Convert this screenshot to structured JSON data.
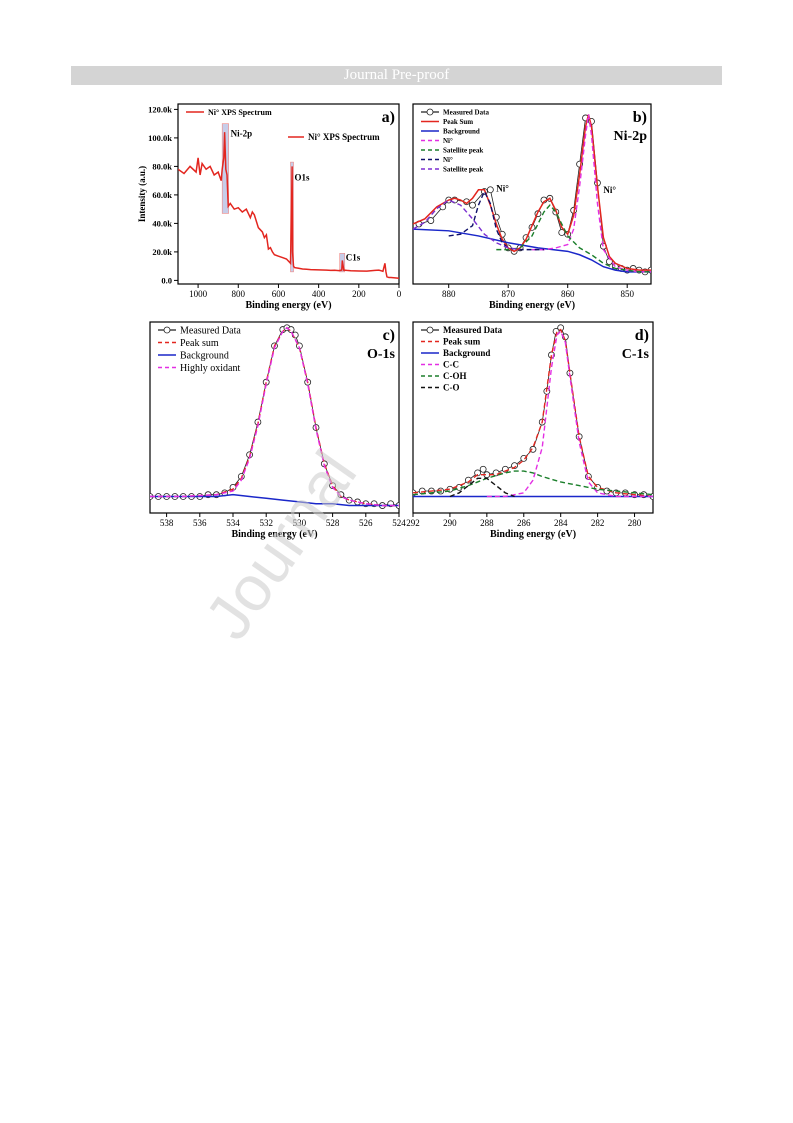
{
  "header": {
    "banner": "Journal Pre-proof"
  },
  "watermark": "Journal",
  "colors": {
    "red": "#e3261f",
    "blue": "#1a27c9",
    "green": "#1b7f2b",
    "magenta": "#e32fe3",
    "purple": "#7b2fd1",
    "navy": "#10106a",
    "black": "#111111",
    "highlight": "#9aa6d8"
  },
  "chart_data": [
    {
      "type": "line",
      "panel": "a)",
      "xlabel": "Binding energy (eV)",
      "ylabel": "Intensity (a.u.)",
      "xlim": [
        1100,
        0
      ],
      "ylim": [
        0,
        120000
      ],
      "x_ticks": [
        "1000",
        "800",
        "600",
        "400",
        "200",
        "0"
      ],
      "y_ticks": [
        "0.0",
        "20.0k",
        "40.0k",
        "60.0k",
        "80.0k",
        "100.0k",
        "120.0k"
      ],
      "legend": [
        "Ni° XPS Spectrum"
      ],
      "annotations": [
        "Ni-2p",
        "O1s",
        "C1s"
      ],
      "series": [
        {
          "name": "Ni° XPS Spectrum",
          "color": "#e3261f",
          "x": [
            1100,
            1070,
            1040,
            1010,
            1000,
            990,
            980,
            960,
            940,
            920,
            900,
            885,
            880,
            872,
            868,
            862,
            856,
            850,
            840,
            820,
            800,
            780,
            760,
            740,
            730,
            720,
            700,
            680,
            670,
            660,
            650,
            640,
            630,
            620,
            600,
            580,
            560,
            540,
            535,
            532,
            530,
            525,
            520,
            500,
            480,
            460,
            440,
            420,
            400,
            380,
            360,
            340,
            320,
            300,
            285,
            282,
            275,
            260,
            240,
            200,
            160,
            120,
            100,
            80,
            70,
            65,
            60,
            50,
            40,
            20,
            0
          ],
          "y": [
            78000,
            75000,
            80000,
            76000,
            86000,
            74000,
            82000,
            78000,
            80000,
            74000,
            76000,
            70000,
            78000,
            86000,
            104000,
            78000,
            74000,
            52000,
            54000,
            50000,
            51000,
            48000,
            50000,
            44000,
            48000,
            46000,
            37000,
            34000,
            30000,
            32000,
            22000,
            23000,
            20000,
            18000,
            17000,
            16000,
            15000,
            12000,
            50000,
            80000,
            20000,
            10000,
            9000,
            8500,
            8000,
            7800,
            7600,
            7500,
            7400,
            7300,
            7200,
            7000,
            7100,
            6900,
            7200,
            14000,
            7200,
            7000,
            6800,
            6600,
            6500,
            7000,
            7200,
            6400,
            12000,
            6000,
            2500,
            2000,
            2000,
            1800,
            1500
          ]
        }
      ]
    },
    {
      "type": "line",
      "panel": "b)",
      "title": "Ni-2p",
      "xlabel": "Binding energy (eV)",
      "xlim": [
        886,
        846
      ],
      "ylim": [
        0,
        1
      ],
      "x_ticks": [
        "880",
        "870",
        "860",
        "850"
      ],
      "legend": [
        "Measured Data",
        "Peak Sum",
        "Background",
        "Ni°",
        "Satellite peak",
        "Ni°",
        "Satellite peak"
      ],
      "annotations": [
        "Ni°",
        "Ni°"
      ],
      "series": [
        {
          "name": "Measured Data",
          "style": "circles",
          "x": [
            885,
            883,
            881,
            880,
            879,
            877,
            876,
            874,
            873,
            872,
            871,
            870,
            869,
            868,
            867,
            866,
            865,
            864,
            863,
            862,
            861,
            860,
            859,
            858,
            857,
            856,
            855,
            854,
            853,
            852,
            851,
            850,
            849,
            848,
            847,
            846
          ],
          "y": [
            0.33,
            0.35,
            0.43,
            0.47,
            0.47,
            0.46,
            0.44,
            0.52,
            0.53,
            0.37,
            0.27,
            0.19,
            0.17,
            0.19,
            0.25,
            0.31,
            0.39,
            0.47,
            0.48,
            0.4,
            0.28,
            0.27,
            0.41,
            0.68,
            0.95,
            0.93,
            0.57,
            0.2,
            0.11,
            0.08,
            0.07,
            0.06,
            0.07,
            0.06,
            0.05,
            0.06
          ]
        },
        {
          "name": "Peak Sum",
          "color": "#e3261f",
          "x": [
            886,
            884,
            882,
            880,
            879,
            878,
            877,
            876,
            875,
            874,
            873,
            872,
            871,
            870,
            869,
            868,
            867,
            866,
            865,
            864,
            863,
            862,
            861,
            860,
            859,
            858,
            857,
            856.5,
            856,
            855,
            854,
            853,
            852,
            850,
            848,
            846
          ],
          "y": [
            0.33,
            0.36,
            0.43,
            0.47,
            0.48,
            0.47,
            0.45,
            0.48,
            0.53,
            0.53,
            0.44,
            0.33,
            0.24,
            0.19,
            0.17,
            0.19,
            0.24,
            0.32,
            0.4,
            0.46,
            0.48,
            0.41,
            0.31,
            0.27,
            0.38,
            0.62,
            0.9,
            0.97,
            0.9,
            0.55,
            0.25,
            0.14,
            0.1,
            0.07,
            0.06,
            0.06
          ]
        },
        {
          "name": "Background",
          "color": "#1a27c9",
          "x": [
            886,
            880,
            875,
            870,
            865,
            860,
            858,
            856,
            854,
            852,
            850,
            848,
            846
          ],
          "y": [
            0.3,
            0.29,
            0.26,
            0.22,
            0.19,
            0.17,
            0.15,
            0.12,
            0.08,
            0.06,
            0.05,
            0.05,
            0.05
          ]
        },
        {
          "name": "Ni°",
          "color": "#e32fe3",
          "dashed": true,
          "x": [
            866,
            864,
            862,
            860,
            859,
            858,
            857,
            856.5,
            856,
            855,
            854,
            852,
            850,
            848,
            846
          ],
          "y": [
            0.18,
            0.18,
            0.19,
            0.21,
            0.3,
            0.55,
            0.85,
            0.97,
            0.85,
            0.45,
            0.18,
            0.08,
            0.06,
            0.05,
            0.05
          ]
        },
        {
          "name": "Satellite peak",
          "color": "#1b7f2b",
          "dashed": true,
          "x": [
            872,
            870,
            868,
            866,
            864,
            863,
            862,
            860,
            858,
            856,
            854,
            852,
            850,
            848,
            846
          ],
          "y": [
            0.18,
            0.18,
            0.19,
            0.26,
            0.4,
            0.44,
            0.4,
            0.26,
            0.19,
            0.15,
            0.1,
            0.07,
            0.06,
            0.05,
            0.05
          ]
        },
        {
          "name": "Ni°",
          "color": "#10106a",
          "dashed": true,
          "x": [
            880,
            878,
            876,
            875,
            874,
            873,
            872,
            871,
            870,
            868,
            866,
            864
          ],
          "y": [
            0.26,
            0.27,
            0.32,
            0.44,
            0.52,
            0.45,
            0.3,
            0.22,
            0.19,
            0.18,
            0.18,
            0.18
          ]
        },
        {
          "name": "Satellite peak",
          "color": "#7b2fd1",
          "dashed": true,
          "x": [
            886,
            884,
            882,
            880,
            878,
            876,
            874,
            872,
            870,
            868
          ],
          "y": [
            0.3,
            0.34,
            0.42,
            0.47,
            0.44,
            0.36,
            0.27,
            0.22,
            0.19,
            0.18
          ]
        }
      ]
    },
    {
      "type": "line",
      "panel": "c)",
      "title": "O-1s",
      "xlabel": "Binding energy (eV)",
      "xlim": [
        539,
        524
      ],
      "ylim": [
        0,
        1
      ],
      "x_ticks": [
        "538",
        "536",
        "534",
        "532",
        "530",
        "528",
        "526",
        "524"
      ],
      "legend": [
        "Measured Data",
        "Peak sum",
        "Background",
        "Highly oxidant"
      ],
      "series": [
        {
          "name": "Measured Data",
          "style": "circles",
          "x": [
            539,
            538.5,
            538,
            537.5,
            537,
            536.5,
            536,
            535.5,
            535,
            534.5,
            534,
            533.5,
            533,
            532.5,
            532,
            531.5,
            531,
            530.75,
            530.5,
            530.25,
            530,
            529.5,
            529,
            528.5,
            528,
            527.5,
            527,
            526.5,
            526,
            525.5,
            525,
            524.5,
            524
          ],
          "y": [
            0.07,
            0.07,
            0.07,
            0.07,
            0.07,
            0.07,
            0.07,
            0.08,
            0.08,
            0.09,
            0.12,
            0.18,
            0.3,
            0.48,
            0.7,
            0.9,
            0.99,
            1.0,
            0.99,
            0.96,
            0.9,
            0.7,
            0.45,
            0.25,
            0.13,
            0.08,
            0.05,
            0.04,
            0.03,
            0.03,
            0.02,
            0.03,
            0.02
          ]
        },
        {
          "name": "Peak sum",
          "color": "#e3261f",
          "dashed": true,
          "x": [
            539,
            537,
            535,
            534,
            533.5,
            533,
            532.5,
            532,
            531.5,
            531,
            530.75,
            530.5,
            530,
            529.5,
            529,
            528.5,
            528,
            527.5,
            527,
            526,
            525,
            524
          ],
          "y": [
            0.07,
            0.07,
            0.08,
            0.11,
            0.17,
            0.29,
            0.47,
            0.7,
            0.9,
            0.98,
            1.0,
            0.98,
            0.89,
            0.7,
            0.45,
            0.25,
            0.13,
            0.07,
            0.05,
            0.03,
            0.02,
            0.02
          ]
        },
        {
          "name": "Background",
          "color": "#1a27c9",
          "x": [
            539,
            537,
            535,
            534,
            533,
            532,
            531,
            530,
            529,
            528,
            527,
            526,
            525,
            524
          ],
          "y": [
            0.07,
            0.07,
            0.07,
            0.08,
            0.07,
            0.06,
            0.05,
            0.04,
            0.03,
            0.03,
            0.02,
            0.02,
            0.02,
            0.02
          ]
        },
        {
          "name": "Highly oxidant",
          "color": "#e32fe3",
          "dashed": true,
          "x": [
            539,
            537,
            535,
            534,
            533.5,
            533,
            532.5,
            532,
            531.5,
            531,
            530.75,
            530.5,
            530,
            529.5,
            529,
            528.5,
            528,
            527.5,
            527,
            526,
            525,
            524
          ],
          "y": [
            0.07,
            0.07,
            0.08,
            0.1,
            0.16,
            0.28,
            0.46,
            0.69,
            0.89,
            0.98,
            1.0,
            0.98,
            0.89,
            0.69,
            0.44,
            0.24,
            0.12,
            0.07,
            0.05,
            0.03,
            0.02,
            0.02
          ]
        }
      ]
    },
    {
      "type": "line",
      "panel": "d)",
      "title": "C-1s",
      "xlabel": "Binding energy (eV)",
      "xlim": [
        292,
        279
      ],
      "ylim": [
        0,
        1
      ],
      "x_ticks": [
        "292",
        "290",
        "288",
        "286",
        "284",
        "282",
        "280"
      ],
      "legend": [
        "Measured Data",
        "Peak sum",
        "Background",
        "C-C",
        "C-OH",
        "C-O"
      ],
      "series": [
        {
          "name": "Measured Data",
          "style": "circles",
          "x": [
            292,
            291.5,
            291,
            290.5,
            290,
            289.5,
            289,
            288.5,
            288.2,
            288,
            287.5,
            287,
            286.5,
            286,
            285.5,
            285,
            284.75,
            284.5,
            284.25,
            284,
            283.75,
            283.5,
            283,
            282.5,
            282,
            281.5,
            281,
            280.5,
            280,
            279.5,
            279
          ],
          "y": [
            0.09,
            0.1,
            0.1,
            0.1,
            0.11,
            0.12,
            0.16,
            0.2,
            0.22,
            0.19,
            0.2,
            0.22,
            0.24,
            0.28,
            0.33,
            0.48,
            0.65,
            0.85,
            0.98,
            1.0,
            0.95,
            0.75,
            0.4,
            0.18,
            0.12,
            0.1,
            0.09,
            0.09,
            0.08,
            0.08,
            0.07
          ]
        },
        {
          "name": "Peak sum",
          "color": "#e3261f",
          "dashed": true,
          "x": [
            292,
            291,
            290,
            289,
            288.5,
            288,
            287.5,
            287,
            286.5,
            286,
            285.5,
            285,
            284.5,
            284.2,
            284,
            283.75,
            283.5,
            283,
            282.5,
            282,
            281,
            280,
            279
          ],
          "y": [
            0.09,
            0.1,
            0.11,
            0.15,
            0.19,
            0.19,
            0.19,
            0.21,
            0.23,
            0.27,
            0.34,
            0.48,
            0.85,
            0.98,
            0.99,
            0.93,
            0.75,
            0.4,
            0.18,
            0.12,
            0.09,
            0.08,
            0.07
          ]
        },
        {
          "name": "Background",
          "color": "#1a27c9",
          "x": [
            292,
            290,
            288,
            286,
            284,
            282,
            280,
            279
          ],
          "y": [
            0.07,
            0.07,
            0.07,
            0.07,
            0.07,
            0.07,
            0.07,
            0.07
          ]
        },
        {
          "name": "C-C",
          "color": "#e32fe3",
          "dashed": true,
          "x": [
            288,
            287,
            286,
            285.5,
            285,
            284.5,
            284.2,
            284,
            283.75,
            283.5,
            283,
            282.5,
            282,
            281,
            280,
            279
          ],
          "y": [
            0.07,
            0.07,
            0.09,
            0.16,
            0.34,
            0.78,
            0.96,
            0.98,
            0.92,
            0.73,
            0.37,
            0.15,
            0.09,
            0.07,
            0.07,
            0.07
          ]
        },
        {
          "name": "C-OH",
          "color": "#1b7f2b",
          "dashed": true,
          "x": [
            292,
            290,
            289,
            288,
            287,
            286.5,
            286,
            285.5,
            285,
            284,
            283,
            282,
            281,
            280,
            279
          ],
          "y": [
            0.08,
            0.1,
            0.13,
            0.17,
            0.2,
            0.21,
            0.21,
            0.2,
            0.18,
            0.15,
            0.13,
            0.11,
            0.1,
            0.09,
            0.08
          ]
        },
        {
          "name": "C-O",
          "color": "#111111",
          "dashed": true,
          "x": [
            290,
            289.5,
            289,
            288.5,
            288,
            287.5,
            287,
            286.5
          ],
          "y": [
            0.07,
            0.09,
            0.13,
            0.17,
            0.17,
            0.13,
            0.09,
            0.07
          ]
        }
      ]
    }
  ]
}
